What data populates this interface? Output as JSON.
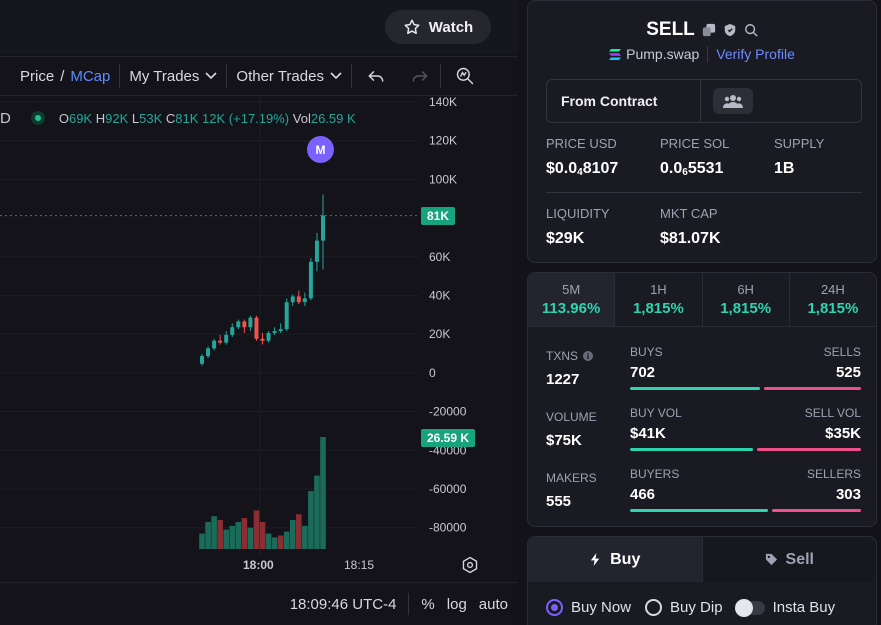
{
  "header": {
    "watch_label": "Watch"
  },
  "toolbar": {
    "price_label": "Price",
    "slash": "/",
    "mcap_label": "MCap",
    "my_trades_label": "My Trades",
    "other_trades_label": "Other Trades"
  },
  "ohlc": {
    "symbol_suffix": "D",
    "o_label": "O",
    "o_value": "69K",
    "h_label": "H",
    "h_value": "92K",
    "l_label": "L",
    "l_value": "53K",
    "c_label": "C",
    "c_value": "81K",
    "change": "12K (+17.19%)",
    "vol_label": "Vol",
    "vol_value": "26.59 K"
  },
  "chart_data": {
    "type": "candlestick",
    "y_axis_ticks": [
      "140K",
      "120K",
      "100K",
      "81K",
      "60K",
      "40K",
      "20K",
      "0",
      "-20000",
      "-40000",
      "-60000",
      "-80000"
    ],
    "x_axis_ticks": [
      "18:00",
      "18:15"
    ],
    "last_price_tag": "81K",
    "last_volume_tag": "26.59 K",
    "marker_label": "M",
    "candles": [
      {
        "o": 4,
        "c": 8,
        "h": 9,
        "l": 3
      },
      {
        "o": 8,
        "c": 12,
        "h": 13,
        "l": 7
      },
      {
        "o": 12,
        "c": 16,
        "h": 17,
        "l": 11
      },
      {
        "o": 16,
        "c": 15,
        "h": 19,
        "l": 14
      },
      {
        "o": 15,
        "c": 19,
        "h": 21,
        "l": 14
      },
      {
        "o": 19,
        "c": 23,
        "h": 25,
        "l": 18
      },
      {
        "o": 23,
        "c": 26,
        "h": 27,
        "l": 22
      },
      {
        "o": 26,
        "c": 23,
        "h": 27,
        "l": 20
      },
      {
        "o": 23,
        "c": 28,
        "h": 29,
        "l": 21
      },
      {
        "o": 28,
        "c": 17,
        "h": 29,
        "l": 16
      },
      {
        "o": 17,
        "c": 16,
        "h": 20,
        "l": 14
      },
      {
        "o": 16,
        "c": 20,
        "h": 21,
        "l": 15
      },
      {
        "o": 20,
        "c": 21,
        "h": 23,
        "l": 19
      },
      {
        "o": 21,
        "c": 22,
        "h": 25,
        "l": 20
      },
      {
        "o": 22,
        "c": 36,
        "h": 38,
        "l": 21
      },
      {
        "o": 36,
        "c": 39,
        "h": 40,
        "l": 34
      },
      {
        "o": 39,
        "c": 36,
        "h": 42,
        "l": 35
      },
      {
        "o": 36,
        "c": 38,
        "h": 41,
        "l": 34
      },
      {
        "o": 38,
        "c": 57,
        "h": 59,
        "l": 37
      },
      {
        "o": 57,
        "c": 68,
        "h": 72,
        "l": 52
      },
      {
        "o": 68,
        "c": 81,
        "h": 92,
        "l": 53
      }
    ],
    "volumes": [
      {
        "v": 8,
        "dir": "up"
      },
      {
        "v": 14,
        "dir": "up"
      },
      {
        "v": 17,
        "dir": "up"
      },
      {
        "v": 15,
        "dir": "down"
      },
      {
        "v": 10,
        "dir": "up"
      },
      {
        "v": 12,
        "dir": "up"
      },
      {
        "v": 14,
        "dir": "up"
      },
      {
        "v": 16,
        "dir": "down"
      },
      {
        "v": 11,
        "dir": "up"
      },
      {
        "v": 20,
        "dir": "down"
      },
      {
        "v": 14,
        "dir": "down"
      },
      {
        "v": 8,
        "dir": "up"
      },
      {
        "v": 6,
        "dir": "up"
      },
      {
        "v": 7,
        "dir": "down"
      },
      {
        "v": 9,
        "dir": "up"
      },
      {
        "v": 15,
        "dir": "up"
      },
      {
        "v": 18,
        "dir": "down"
      },
      {
        "v": 12,
        "dir": "up"
      },
      {
        "v": 30,
        "dir": "up"
      },
      {
        "v": 38,
        "dir": "up"
      },
      {
        "v": 58,
        "dir": "up"
      }
    ]
  },
  "bottom": {
    "time": "18:09:46 UTC-4",
    "percent": "%",
    "log": "log",
    "auto": "auto"
  },
  "token": {
    "side": "SELL",
    "dex": "Pump.swap",
    "verify": "Verify Profile",
    "contract_label": "From Contract",
    "price_usd_label": "PRICE USD",
    "price_usd_a": "$0.0",
    "price_usd_sub": "4",
    "price_usd_b": "8107",
    "price_sol_label": "PRICE SOL",
    "price_sol_a": "0.0",
    "price_sol_sub": "6",
    "price_sol_b": "5531",
    "supply_label": "SUPPLY",
    "supply": "1B",
    "liquidity_label": "LIQUIDITY",
    "liquidity": "$29K",
    "mcap_label": "MKT CAP",
    "mcap": "$81.07K"
  },
  "timeframes": [
    {
      "label": "5M",
      "value": "113.96%"
    },
    {
      "label": "1H",
      "value": "1,815%"
    },
    {
      "label": "6H",
      "value": "1,815%"
    },
    {
      "label": "24H",
      "value": "1,815%"
    }
  ],
  "activity": {
    "txns_label": "TXNS",
    "txns": "1227",
    "volume_label": "VOLUME",
    "volume": "$75K",
    "makers_label": "MAKERS",
    "makers": "555",
    "buys_label": "BUYS",
    "buys": "702",
    "sells_label": "SELLS",
    "sells": "525",
    "buys_share": 0.572,
    "buyvol_label": "BUY VOL",
    "buyvol": "$41K",
    "sellvol_label": "SELL VOL",
    "sellvol": "$35K",
    "buyvol_share": 0.54,
    "buyers_label": "BUYERS",
    "buyers": "466",
    "sellers_label": "SELLERS",
    "sellers": "303",
    "buyers_share": 0.606
  },
  "trade": {
    "buy_tab": "Buy",
    "sell_tab": "Sell",
    "buy_now": "Buy Now",
    "buy_dip": "Buy Dip",
    "insta_buy": "Insta Buy"
  }
}
